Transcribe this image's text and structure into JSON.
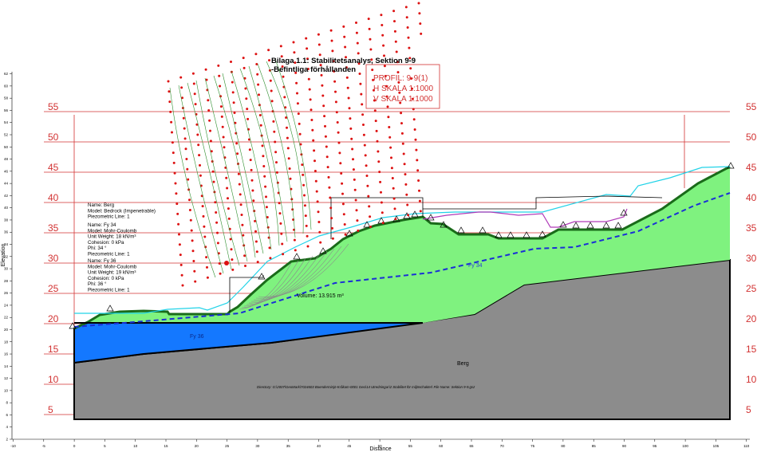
{
  "title": {
    "line1": "Bilaga 1.1: Stabilitetsanalys, Sektion 9-9",
    "line2": "-Befintliga förhållanden"
  },
  "stamp": {
    "profile": "PROFIL: 9-9(1)",
    "h_scale": "H SKALA 1:1000",
    "v_scale": "V SKALA 1:1000"
  },
  "axes": {
    "x_label": "Distance",
    "y_label": "Elevation",
    "x_ticks": [
      "-10",
      "-5",
      "0",
      "5",
      "10",
      "15",
      "20",
      "25",
      "30",
      "35",
      "40",
      "45",
      "50",
      "55",
      "60",
      "65",
      "70",
      "75",
      "80",
      "85",
      "90",
      "95",
      "100",
      "105",
      "110"
    ],
    "y_ticks": [
      "2",
      "4",
      "6",
      "8",
      "10",
      "12",
      "14",
      "16",
      "18",
      "20",
      "22",
      "24",
      "26",
      "28",
      "30",
      "32",
      "34",
      "36",
      "38",
      "40",
      "42",
      "44",
      "46",
      "48",
      "50",
      "52",
      "54",
      "56",
      "58",
      "60",
      "62"
    ],
    "x_range": [
      -10,
      110
    ],
    "y_range": [
      2,
      62
    ]
  },
  "red_scale": {
    "levels": [
      "5",
      "10",
      "15",
      "20",
      "25",
      "30",
      "35",
      "40",
      "45",
      "50",
      "55"
    ]
  },
  "materials": [
    {
      "id": "berg",
      "lines": [
        "Name: Berg",
        "Model: Bedrock (Impenetrable)",
        "Piezometric Line: 1"
      ],
      "label": "Berg",
      "color": "#8c8c8c"
    },
    {
      "id": "fy34",
      "lines": [
        "Name: Fy 34",
        "Model: Mohr-Coulomb",
        "Unit Weight: 18 kN/m³",
        "Cohesion: 0 kPa",
        "Phi: 34 °",
        "Piezometric Line: 1"
      ],
      "label": "Fy 34",
      "color": "#7ff27f"
    },
    {
      "id": "fy36",
      "lines": [
        "Name: Fy 36",
        "Model: Mohr-Coulomb",
        "Unit Weight: 19 kN/m³",
        "Cohesion: 0 kPa",
        "Phi: 36 °",
        "Piezometric Line: 1"
      ],
      "label": "Fy 36",
      "color": "#1478ff"
    }
  ],
  "annotations": {
    "volume": "Volume: 13.915 m³",
    "directory": "Directory: G:\\2007\\GeoMark\\7024603 Boenderminjö-Kråkam-0001 Geo\\14 Utredningar\\2 Stabilitet för miljöschakter\\ File Name: Sektion 9-9.gsz"
  },
  "colors": {
    "grid_red": "#d23232",
    "grid_dot": "#dd1111",
    "water_table": "#1a2fd6",
    "ground_line": "#1a6b1a",
    "cyan_line": "#22d3e8",
    "magenta_line": "#b03ab8"
  }
}
